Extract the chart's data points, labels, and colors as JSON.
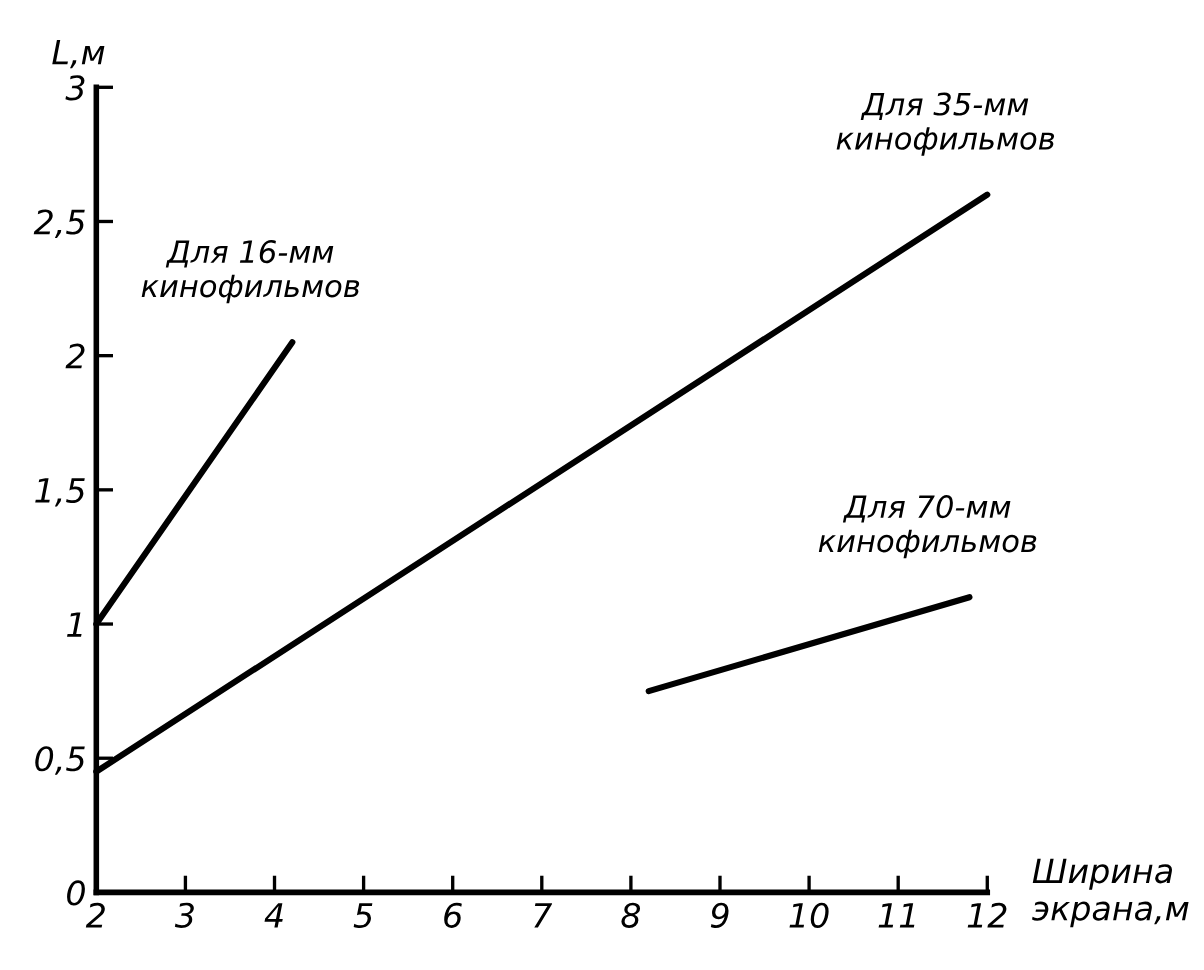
{
  "chart_data": {
    "type": "line",
    "xlabel": "Ширина экрана,м",
    "ylabel": "L,м",
    "series": [
      {
        "name": "Для 16-мм\nкинофильмов",
        "color": "#000000",
        "x": [
          2,
          4.2
        ],
        "values": [
          1.0,
          2.05
        ]
      },
      {
        "name": "Для 35-мм\nкинофильмов",
        "color": "#000000",
        "x": [
          2,
          12
        ],
        "values": [
          0.45,
          2.6
        ]
      },
      {
        "name": "Для 70-мм\nкинофильмов",
        "color": "#000000",
        "x": [
          8.2,
          11.8
        ],
        "values": [
          0.75,
          1.1
        ]
      }
    ],
    "xlim": [
      2,
      12
    ],
    "xticks": [
      2,
      3,
      4,
      5,
      6,
      7,
      8,
      9,
      10,
      11,
      12
    ],
    "ylim": [
      0,
      3
    ],
    "yticks": [
      0,
      {
        "value": 0.5,
        "label": "0,5"
      },
      1,
      {
        "value": 1.5,
        "label": "1,5"
      },
      2,
      {
        "value": 2.5,
        "label": "2,5"
      },
      3
    ],
    "grid": false,
    "legend": false,
    "marker": "none",
    "line_style": "solid"
  }
}
